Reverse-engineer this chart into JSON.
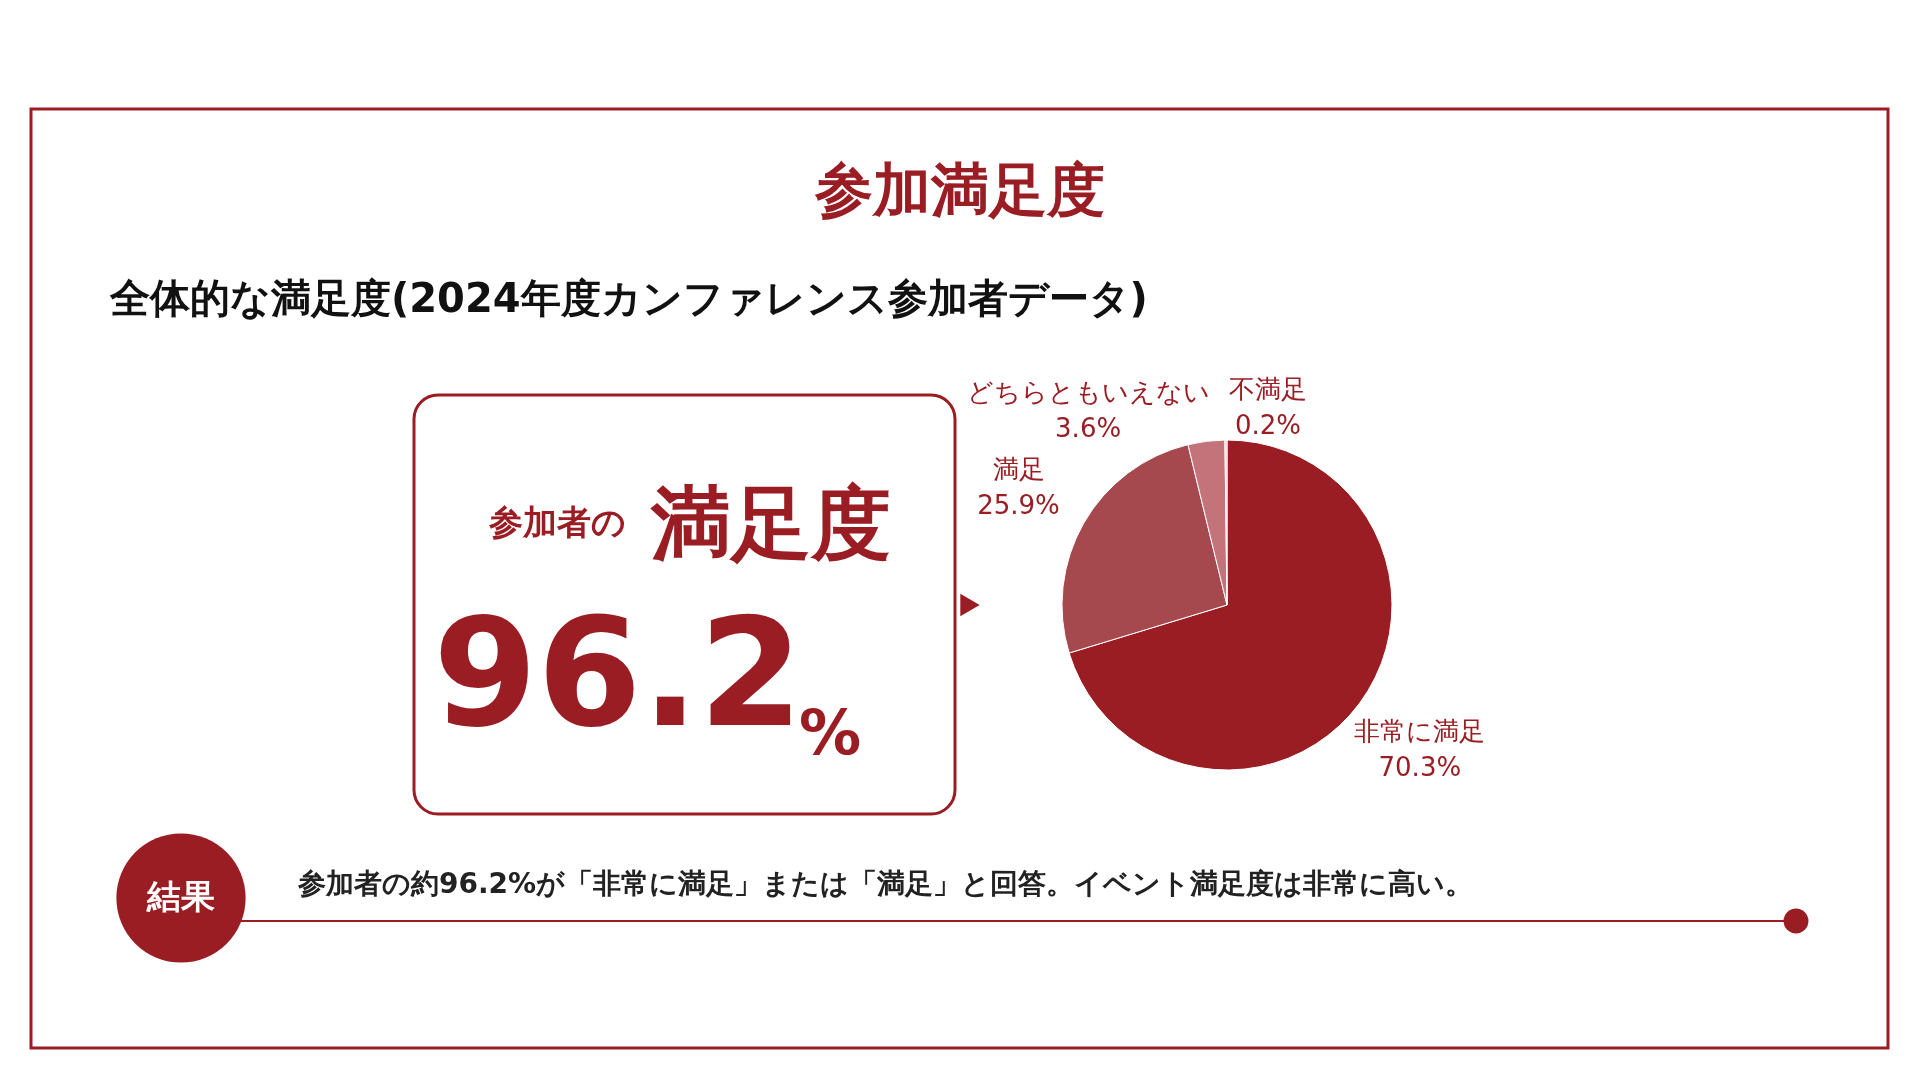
{
  "chart_data": {
    "type": "pie",
    "title": "参加満足度",
    "subtitle": "全体的な満足度(2024年度カンファレンス参加者データ)",
    "categories": [
      "非常に満足",
      "満足",
      "どちらともいえない",
      "不満足"
    ],
    "values": [
      70.3,
      25.9,
      3.6,
      0.2
    ],
    "colors": [
      "#9b1d24",
      "#a5494e",
      "#c4737a",
      "#e6c9cb"
    ],
    "value_labels": [
      "70.3%",
      "25.9%",
      "3.6%",
      "0.2%"
    ],
    "legend": false,
    "annotations": [
      "参加者の",
      "満足度",
      "96.2",
      "%",
      "結果",
      "参加者の約96.2%が「非常に満足」または「満足」と回答。イベント満足度は非常に高い。"
    ]
  }
}
